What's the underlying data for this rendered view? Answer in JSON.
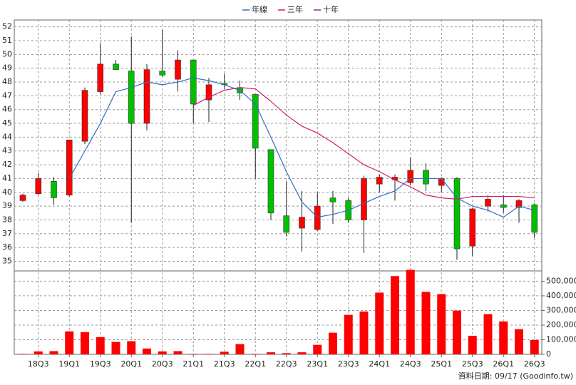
{
  "chart_data": {
    "type": "candlestick",
    "categories": [
      null,
      "18Q3",
      null,
      "19Q1",
      null,
      "19Q3",
      null,
      "20Q1",
      null,
      "20Q3",
      null,
      "21Q1",
      null,
      "21Q3",
      null,
      "22Q1",
      null,
      "22Q3",
      null,
      "23Q1",
      null,
      "23Q3",
      null,
      "24Q1",
      null,
      "24Q3",
      null,
      "25Q1",
      null,
      "25Q3",
      null,
      "26Q1",
      null,
      "26Q3"
    ],
    "open": [
      39.4,
      39.9,
      40.8,
      39.8,
      43.7,
      47.3,
      49.3,
      48.8,
      45.0,
      48.8,
      48.2,
      49.6,
      46.7,
      47.9,
      47.6,
      47.1,
      43.1,
      38.3,
      37.4,
      37.3,
      39.6,
      39.4,
      38.0,
      40.6,
      40.9,
      40.7,
      41.6,
      40.5,
      41.0,
      36.1,
      39.0,
      39.1,
      38.9,
      39.1
    ],
    "high": [
      39.9,
      41.4,
      41.1,
      43.8,
      47.6,
      50.8,
      49.6,
      51.3,
      49.3,
      51.8,
      50.3,
      49.6,
      48.3,
      48.6,
      48.1,
      47.1,
      43.1,
      40.8,
      40.1,
      40.0,
      40.1,
      39.6,
      41.2,
      41.3,
      41.3,
      42.5,
      42.1,
      41.1,
      41.1,
      38.9,
      39.8,
      39.8,
      39.5,
      39.2
    ],
    "low": [
      39.3,
      39.8,
      39.1,
      39.7,
      43.5,
      47.1,
      48.9,
      37.8,
      44.5,
      48.4,
      47.3,
      45.0,
      45.1,
      47.5,
      46.7,
      41.0,
      38.0,
      36.8,
      35.7,
      37.2,
      37.7,
      37.8,
      35.6,
      40.0,
      39.4,
      40.5,
      40.1,
      40.0,
      35.1,
      35.4,
      38.6,
      38.5,
      37.8,
      36.7
    ],
    "close": [
      39.8,
      41.0,
      39.6,
      43.8,
      47.4,
      49.3,
      48.9,
      45.0,
      48.9,
      48.5,
      49.6,
      46.4,
      47.8,
      47.8,
      47.2,
      43.2,
      38.5,
      37.1,
      38.2,
      39.0,
      39.3,
      38.0,
      41.0,
      41.1,
      41.1,
      41.6,
      40.6,
      41.0,
      35.9,
      38.8,
      39.5,
      38.9,
      39.4,
      37.1
    ],
    "up_color": "#ff0000",
    "down_color": "#00c000",
    "series": [
      {
        "name": "年線",
        "color": "#2f6fc4",
        "values": [
          null,
          null,
          null,
          41.0,
          43.0,
          45.0,
          47.3,
          47.6,
          48.0,
          47.8,
          48.0,
          48.3,
          48.1,
          47.8,
          47.4,
          46.4,
          44.0,
          41.5,
          39.3,
          38.2,
          38.4,
          38.7,
          39.2,
          39.7,
          40.1,
          41.0,
          41.0,
          41.0,
          39.6,
          39.0,
          38.7,
          38.2,
          39.0,
          38.7
        ]
      },
      {
        "name": "三年",
        "color": "#d81b6a",
        "values": [
          null,
          null,
          null,
          null,
          null,
          null,
          null,
          null,
          null,
          null,
          null,
          46.3,
          46.9,
          47.4,
          47.6,
          47.5,
          46.6,
          45.6,
          44.8,
          44.3,
          43.6,
          42.8,
          42.0,
          41.5,
          40.9,
          40.4,
          39.8,
          39.6,
          39.5,
          39.7,
          39.7,
          39.7,
          39.7,
          39.6
        ]
      },
      {
        "name": "十年",
        "color": "#8e2a8e",
        "values": [
          null,
          null,
          null,
          null,
          null,
          null,
          null,
          null,
          null,
          null,
          null,
          null,
          null,
          null,
          null,
          null,
          null,
          null,
          null,
          null,
          null,
          null,
          null,
          null,
          null,
          null,
          null,
          null,
          null,
          null,
          null,
          null,
          null,
          null
        ]
      }
    ],
    "ylim": [
      34.3,
      52.5
    ],
    "yticks": [
      35,
      36,
      37,
      38,
      39,
      40,
      41,
      42,
      43,
      44,
      45,
      46,
      47,
      48,
      49,
      50,
      51,
      52
    ],
    "grid": true,
    "volume": {
      "color": "#ff0000",
      "values": [
        3000,
        20000,
        22000,
        157000,
        152000,
        118000,
        85000,
        90000,
        40000,
        20000,
        22000,
        3000,
        3000,
        18000,
        70000,
        3000,
        14000,
        8000,
        14000,
        65000,
        148000,
        270000,
        293000,
        422000,
        535000,
        578000,
        427000,
        412000,
        299000,
        127000,
        275000,
        225000,
        172000,
        98000
      ],
      "ylim": [
        0,
        580000
      ],
      "yticks": [
        0,
        {
          "value": 100000,
          "label": "100,000"
        },
        {
          "value": 200000,
          "label": "200,000"
        },
        {
          "value": 300000,
          "label": "300,000"
        },
        {
          "value": 400000,
          "label": "400,000"
        },
        {
          "value": 500000,
          "label": "500,000"
        }
      ]
    },
    "footnote": "資料日期: 09/17  (Goodinfo.tw)"
  }
}
